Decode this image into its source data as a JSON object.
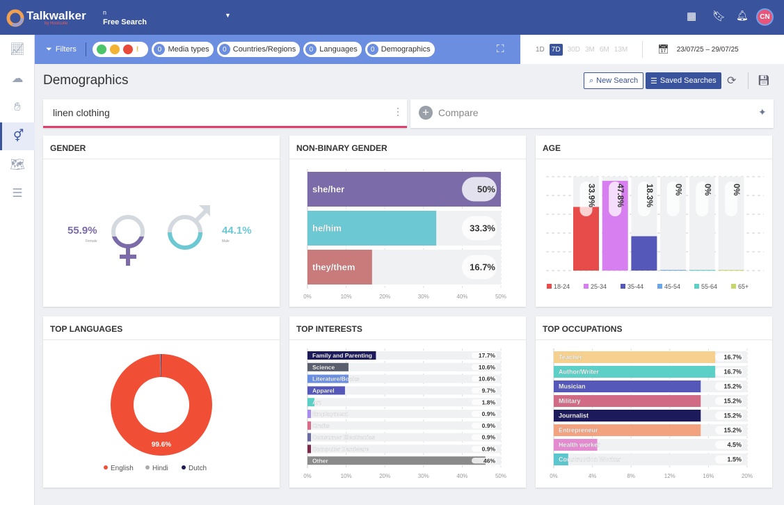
{
  "header": {
    "brand": "Talkwalker",
    "brand_sub": "by Hootsuite",
    "project_small": "n",
    "project": "Free Search",
    "avatar": "CN"
  },
  "sidebar": {
    "items": [
      "trend-icon",
      "cloud-icon",
      "hand-icon",
      "gender-icon",
      "map-icon",
      "list-chat-icon"
    ],
    "active": "gender-icon"
  },
  "filters": {
    "label": "Filters",
    "chips": [
      {
        "count": "0",
        "label": "Media types"
      },
      {
        "count": "0",
        "label": "Countries/Regions"
      },
      {
        "count": "0",
        "label": "Languages"
      },
      {
        "count": "0",
        "label": "Demographics"
      }
    ],
    "sentiments": [
      "#4cc46a",
      "#f2b233",
      "#e84a3a",
      "#f2b233"
    ]
  },
  "date": {
    "periods": [
      "1D",
      "7D",
      "30D",
      "3M",
      "6M",
      "13M"
    ],
    "active": "7D",
    "range": "23/07/25 – 29/07/25"
  },
  "page": {
    "title": "Demographics",
    "new_search": "New Search",
    "saved_searches": "Saved Searches"
  },
  "query": {
    "value": "linen clothing",
    "compare": "Compare"
  },
  "gender": {
    "title": "GENDER",
    "female_value": "55.9%",
    "female_label": "Female",
    "male_value": "44.1%",
    "male_label": "Male",
    "female_color": "#7b6ba8",
    "male_color": "#6cc9d3"
  },
  "chart_data": [
    {
      "id": "nonbinary",
      "title": "NON-BINARY GENDER",
      "type": "bar",
      "orientation": "horizontal",
      "categories": [
        "she/her",
        "he/him",
        "they/them"
      ],
      "values": [
        50,
        33.3,
        16.7
      ],
      "labels": [
        "50%",
        "33.3%",
        "16.7%"
      ],
      "colors": [
        "#7b6ba8",
        "#6cc9d3",
        "#c97a7a"
      ],
      "xlim": [
        0,
        50
      ],
      "ticks": [
        "0%",
        "10%",
        "20%",
        "30%",
        "40%",
        "50%"
      ]
    },
    {
      "id": "age",
      "title": "AGE",
      "type": "bar",
      "categories": [
        "18-24",
        "25-34",
        "35-44",
        "45-54",
        "55-64",
        "65+"
      ],
      "values": [
        33.9,
        47.8,
        18.3,
        0,
        0,
        0
      ],
      "labels": [
        "33.9%",
        "47.8%",
        "18.3%",
        "0%",
        "0%",
        "0%"
      ],
      "colors": [
        "#e84c4a",
        "#d77ef0",
        "#5558b8",
        "#6aa6e8",
        "#5ccfc6",
        "#c7d66a"
      ],
      "ylim": [
        0,
        50
      ],
      "legend": "bottom",
      "grid": true
    },
    {
      "id": "languages",
      "title": "TOP LANGUAGES",
      "type": "pie",
      "donut": true,
      "categories": [
        "English",
        "Hindi",
        "Dutch"
      ],
      "values": [
        99.6,
        0.2,
        0.2
      ],
      "center_label": "99.6%",
      "colors": [
        "#f04f36",
        "#aaaaaa",
        "#1c1a5a"
      ],
      "legend": "bottom"
    },
    {
      "id": "interests",
      "title": "TOP INTERESTS",
      "type": "bar",
      "orientation": "horizontal",
      "categories": [
        "Family and Parenting",
        "Science",
        "Literature/Books",
        "Apparel",
        "Art",
        "Employment",
        "Crafts",
        "Consumer Electronics",
        "Computer Hardware",
        "Other"
      ],
      "values": [
        17.7,
        10.6,
        10.6,
        9.7,
        1.8,
        0.9,
        0.9,
        0.9,
        0.9,
        46
      ],
      "labels": [
        "17.7%",
        "10.6%",
        "10.6%",
        "9.7%",
        "1.8%",
        "0.9%",
        "0.9%",
        "0.9%",
        "0.9%",
        "46%"
      ],
      "colors": [
        "#1c1a5a",
        "#5a5f6e",
        "#6a8fe0",
        "#5558b8",
        "#5ccfc6",
        "#a88cf0",
        "#d86a8a",
        "#6a6aa0",
        "#7a2a4a",
        "#8a8a8a"
      ],
      "xlim": [
        0,
        50
      ],
      "ticks": [
        "0%",
        "10%",
        "20%",
        "30%",
        "40%",
        "50%"
      ]
    },
    {
      "id": "occupations",
      "title": "TOP OCCUPATIONS",
      "type": "bar",
      "orientation": "horizontal",
      "categories": [
        "Teacher",
        "Author/Writer",
        "Musician",
        "Military",
        "Journalist",
        "Entrepreneur",
        "Health worker",
        "Construction Worker"
      ],
      "values": [
        16.7,
        16.7,
        15.2,
        15.2,
        15.2,
        15.2,
        4.5,
        1.5
      ],
      "labels": [
        "16.7%",
        "16.7%",
        "15.2%",
        "15.2%",
        "15.2%",
        "15.2%",
        "4.5%",
        "1.5%"
      ],
      "colors": [
        "#f5d08e",
        "#5ccfc6",
        "#5558b8",
        "#d06a85",
        "#1c1a5a",
        "#f2a27e",
        "#e48ad0",
        "#5cc6cf"
      ],
      "xlim": [
        0,
        20
      ],
      "ticks": [
        "0%",
        "4%",
        "8%",
        "12%",
        "16%",
        "20%"
      ]
    }
  ]
}
